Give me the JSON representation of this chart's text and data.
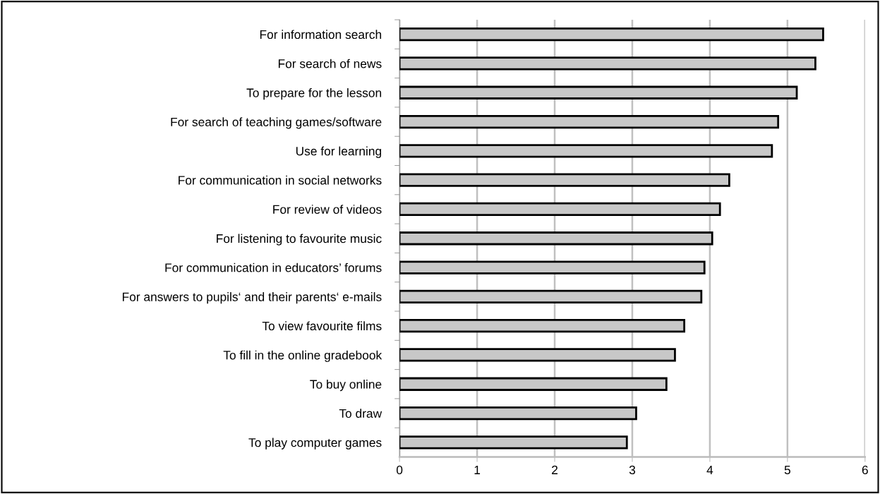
{
  "chart_data": {
    "type": "bar",
    "orientation": "horizontal",
    "categories": [
      "For information search",
      "For search of news",
      "To prepare for the lesson",
      "For search of teaching games/software",
      "Use for learning",
      "For communication in social networks",
      "For review of videos",
      "For listening to favourite music",
      "For communication in educators’ forums",
      "For answers to pupils‘ and their parents‘ e-mails",
      "To view favourite films",
      "To fill in the online gradebook",
      "To buy online",
      "To draw",
      "To play computer games"
    ],
    "values": [
      5.46,
      5.36,
      5.12,
      4.88,
      4.8,
      4.25,
      4.13,
      4.03,
      3.93,
      3.89,
      3.67,
      3.55,
      3.44,
      3.05,
      2.93
    ],
    "color": "#c8c8c8",
    "xlim": [
      0,
      6
    ],
    "xticks": [
      0,
      1,
      2,
      3,
      4,
      5,
      6
    ],
    "grid": "x"
  }
}
